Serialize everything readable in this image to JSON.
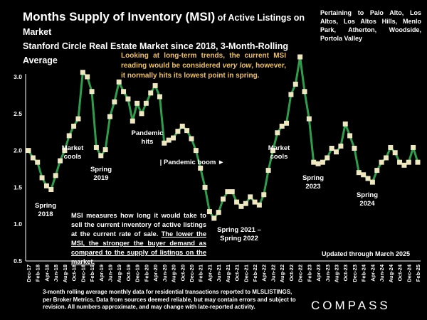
{
  "header": {
    "title_main": "Months Supply of Inventory (MSI)",
    "title_sub": " of Active Listings on Market",
    "title_line2": "Stanford Circle Real Estate Market since 2018, 3-Month-Rolling Average",
    "region_note": "Pertaining to Palo Alto, Los Altos, Los Altos Hills, Menlo Park, Atherton, Woodside, Portola Valley"
  },
  "notes": {
    "trend_pre": "Looking at long-term trends, the current MSI reading would be considered ",
    "trend_em": "very low",
    "trend_post": ", however, it normally hits its lowest point in spring.",
    "definition_plain": "MSI measures how long it would take to sell the current inventory of active listings at the current rate of sale. ",
    "definition_underlined": "The lower the MSI, the stronger the buyer demand as compared to the supply of listings on the market.",
    "updated": "Updated through March 2025",
    "footnote": "3-month rolling average monthly data for residential transactions reported to MLSLISTINGS, per Broker Metrics. Data from sources deemed reliable, but may contain errors and subject to revision. All numbers approximate, and may change with late-reported activity.",
    "logo": "COMPASS"
  },
  "colors": {
    "line": "#2e9e4a",
    "marker": "#efe7c0",
    "trend_text": "#f0c060",
    "background": "#000000"
  },
  "chart_data": {
    "type": "line",
    "ylim": [
      0.5,
      3.0
    ],
    "yticks": [
      "0.5",
      "1.0",
      "1.5",
      "2.0",
      "2.5",
      "3.0"
    ],
    "ytick_values": [
      0.5,
      1.0,
      1.5,
      2.0,
      2.5,
      3.0
    ],
    "grid": false,
    "x_tick_labels": [
      "Dec-17",
      "Feb-18",
      "Apr-18",
      "Jun-18",
      "Aug-18",
      "Oct-18",
      "Dec-18",
      "Feb-19",
      "Apr-19",
      "Jun-19",
      "Aug-19",
      "Oct-19",
      "Dec-19",
      "Feb-20",
      "Apr-20",
      "Jun-20",
      "Aug-20",
      "Oct-20",
      "Dec-20",
      "Feb-21",
      "Apr-21",
      "Jun-21",
      "Aug-21",
      "Oct-21",
      "Dec-21",
      "Feb-22",
      "Apr-22",
      "Jun-22",
      "Aug-22",
      "Oct-22",
      "Dec-22",
      "Feb-23",
      "Apr-23",
      "Jun-23",
      "Aug-23",
      "Oct-23",
      "Dec-23",
      "Feb-24",
      "Apr-24",
      "Jun-24",
      "Aug-24",
      "Oct-24",
      "Dec-24",
      "Feb-25"
    ],
    "series": [
      {
        "values": [
          2.0,
          1.9,
          1.84,
          1.63,
          1.52,
          1.47,
          1.66,
          1.86,
          2.0,
          2.2,
          2.33,
          2.43,
          3.06,
          3.0,
          2.8,
          2.04,
          1.93,
          2.01,
          2.46,
          2.66,
          2.93,
          2.8,
          2.7,
          2.4,
          2.64,
          2.5,
          2.64,
          2.78,
          2.88,
          2.73,
          2.1,
          2.14,
          2.17,
          2.26,
          2.33,
          2.27,
          2.16,
          2.0,
          1.76,
          1.5,
          1.17,
          1.08,
          1.16,
          1.34,
          1.44,
          1.44,
          1.3,
          1.24,
          1.28,
          1.37,
          1.3,
          1.26,
          1.4,
          1.73,
          2.0,
          2.24,
          2.33,
          2.37,
          2.76,
          2.9,
          3.27,
          2.8,
          2.43,
          1.84,
          1.82,
          1.84,
          1.9,
          2.03,
          1.98,
          2.06,
          2.36,
          2.2,
          2.03,
          1.7,
          1.67,
          1.62,
          1.57,
          1.73,
          1.84,
          1.9,
          2.04,
          1.97,
          1.84,
          1.8,
          1.84,
          2.04,
          1.84
        ]
      }
    ],
    "annotations": [
      "Spring\n2018",
      "Market\ncools",
      "Spring\n2019",
      "Pandemic\nhits",
      "| Pandemic boom ►",
      "Spring 2021 –\nSpring 2022",
      "Market\ncools",
      "Spring\n2023",
      "Spring\n2024"
    ]
  }
}
